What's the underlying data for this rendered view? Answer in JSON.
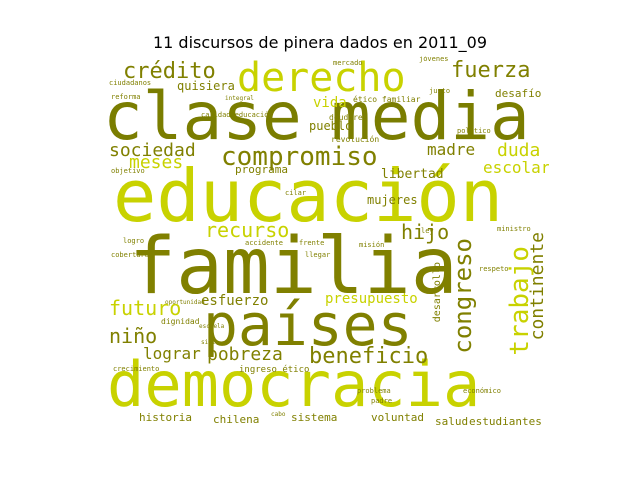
{
  "title": "11 discursos de pinera dados en 2011_09",
  "palette": {
    "olive": "#808000",
    "yellow_green": "#c8d200",
    "dark_olive": "#6b7000"
  },
  "words": {
    "clase": "clase",
    "media": "media",
    "educacion": "educación",
    "familia": "familia",
    "democracia": "democracia",
    "paises": "países",
    "derecho": "derecho",
    "compromiso": "compromiso",
    "credito": "crédito",
    "fuerza": "fuerza",
    "sociedad": "sociedad",
    "meses": "meses",
    "madre": "madre",
    "duda": "duda",
    "escolar": "escolar",
    "recurso": "recurso",
    "hijo": "hijo",
    "congreso": "congreso",
    "trabajo": "trabajo",
    "continente": "continente",
    "futuro": "futuro",
    "nino": "niño",
    "lograr": "lograr",
    "pobreza": "pobreza",
    "beneficio": "beneficio",
    "esfuerzo": "esfuerzo",
    "presupuesto": "presupuesto",
    "vida": "vida",
    "pueblo": "pueblo",
    "desafio": "desafío",
    "quisiera": "quisiera",
    "libertad": "libertad",
    "mujeres": "mujeres",
    "programa": "programa",
    "historia": "historia",
    "chilena": "chilena",
    "sistema": "sistema",
    "voluntad": "voluntad",
    "salud": "salud",
    "estudiantes": "estudiantes",
    "desarrollo": "desarrollo",
    "dignidad": "dignidad",
    "ingreso_etico": "ingreso ético",
    "revolucion": "revolución",
    "deudores": "deudores",
    "etico_familiar": "ético familiar",
    "mercado": "mercado",
    "ciudadanos": "ciudadanos",
    "reforma": "reforma",
    "calidad_educacion": "calidad educación",
    "accidente": "accidente",
    "mision": "misión",
    "respeto": "respeto",
    "padre": "padre",
    "problema": "problema",
    "crecimiento": "crecimiento",
    "oportunidad": "oportunidad",
    "logro": "logro",
    "cobertura": "cobertura",
    "escuela": "escuela",
    "siglo": "siglo",
    "politico": "político",
    "justo": "justo",
    "ministro": "ministro",
    "economico": "económico",
    "cabo": "cabo",
    "llegar": "llegar",
    "frente": "frente",
    "cilar": "cilar",
    "integral": "integral",
    "jovenes": "jóvenes",
    "ley": "ley",
    "objetivo": "objetivo"
  }
}
